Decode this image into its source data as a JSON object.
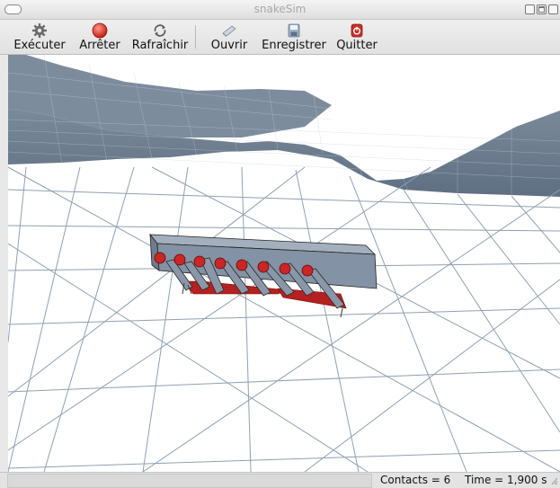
{
  "window": {
    "title": "snakeSim"
  },
  "toolbar": {
    "buttons": [
      {
        "label": "Exécuter",
        "icon": "gear-icon"
      },
      {
        "label": "Arrêter",
        "icon": "stop-icon"
      },
      {
        "label": "Rafraîchir",
        "icon": "refresh-icon"
      },
      {
        "label": "Ouvrir",
        "icon": "open-icon"
      },
      {
        "label": "Enregistrer",
        "icon": "save-icon"
      },
      {
        "label": "Quitter",
        "icon": "quit-icon"
      }
    ]
  },
  "status": {
    "contacts": "Contacts = 6",
    "time": "Time = 1,900 s"
  },
  "colors": {
    "terrain_fill": "#6a7b8c",
    "grid_line": "#8fa0b2",
    "snake_body": "#8392a4",
    "joint_red": "#cc2525"
  }
}
